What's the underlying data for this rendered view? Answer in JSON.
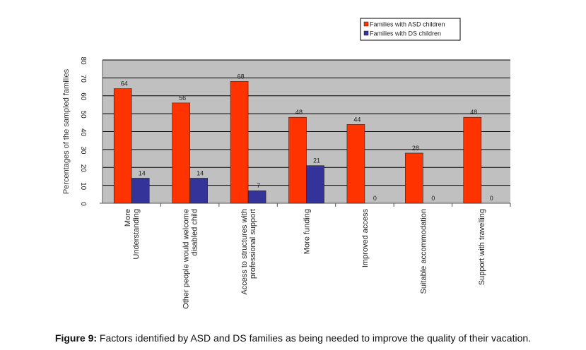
{
  "chart_data": {
    "type": "bar",
    "title": "",
    "xlabel": "",
    "ylabel": "Percentages of the sampled families",
    "ylim": [
      0,
      80
    ],
    "yticks": [
      0,
      10,
      20,
      30,
      40,
      50,
      60,
      70,
      80
    ],
    "grid": true,
    "legend_position": "top-right",
    "categories": [
      [
        "More",
        "Understanding"
      ],
      [
        "Other people would welcome",
        "disabled child"
      ],
      [
        "Access to structures with",
        "professional support"
      ],
      [
        "More funding"
      ],
      [
        "Improved access"
      ],
      [
        "Suitable accommodation"
      ],
      [
        "Support with travelling"
      ]
    ],
    "series": [
      {
        "name": "Families with ASD children",
        "color": "#ff3300",
        "values": [
          64,
          56,
          68,
          48,
          44,
          28,
          48
        ]
      },
      {
        "name": "Families with DS children",
        "color": "#333399",
        "values": [
          14,
          14,
          7,
          21,
          0,
          0,
          0
        ]
      }
    ]
  },
  "caption": {
    "label": "Figure 9:",
    "text": " Factors identified by ASD and DS families as being needed to improve the quality of their vacation."
  }
}
